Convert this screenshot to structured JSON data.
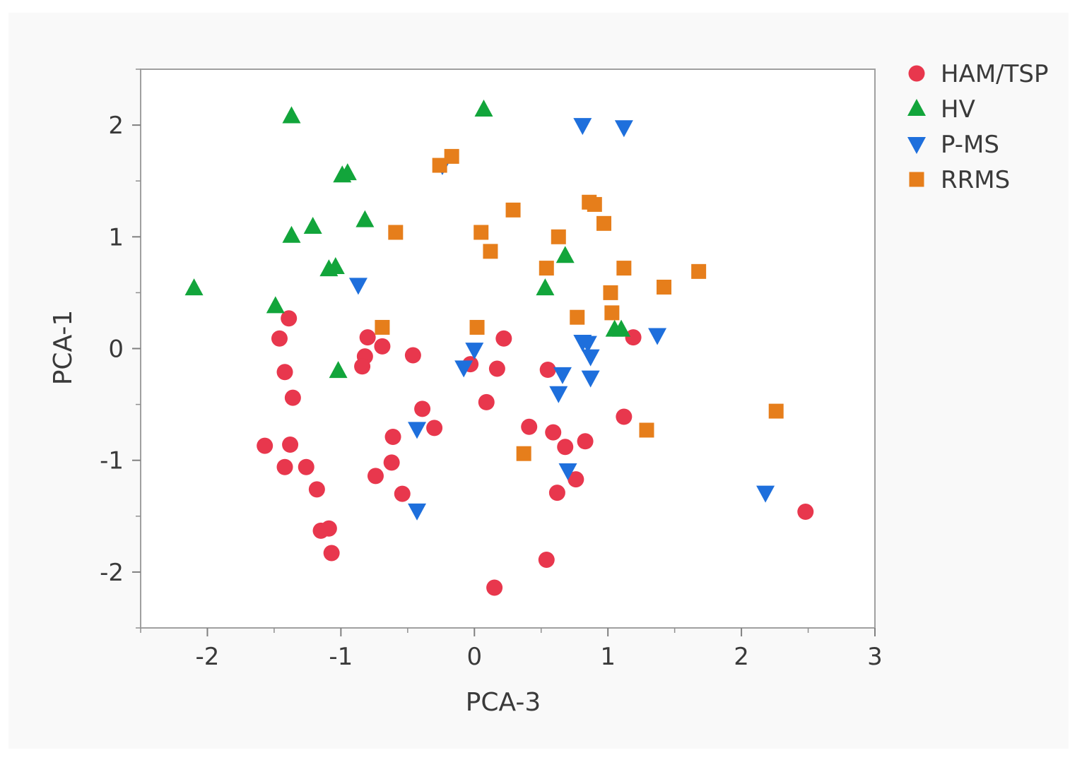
{
  "chart_data": {
    "type": "scatter",
    "xlabel": "PCA-3",
    "ylabel": "PCA-1",
    "xlim": [
      -2.5,
      3
    ],
    "ylim": [
      -2.5,
      2.5
    ],
    "xticks": [
      -2,
      -1,
      0,
      1,
      2,
      3
    ],
    "yticks": [
      -2,
      -1,
      0,
      1,
      2
    ],
    "xtick_labels": [
      "-2",
      "-1",
      "0",
      "1",
      "2",
      "3"
    ],
    "ytick_labels": [
      "-2",
      "-1",
      "0",
      "1",
      "2"
    ],
    "grid": false,
    "legend": "right",
    "series": [
      {
        "name": "HAM/TSP",
        "marker": "circle",
        "color": "#e8374d",
        "x": [
          -1.39,
          -1.46,
          -1.42,
          -1.36,
          -1.57,
          -1.38,
          -1.42,
          -1.26,
          -1.18,
          -1.15,
          -1.09,
          -1.07,
          -0.8,
          -0.82,
          -0.84,
          -0.69,
          -0.46,
          -0.39,
          -0.3,
          -0.61,
          -0.62,
          -0.74,
          -0.54,
          -0.03,
          0.09,
          0.17,
          0.22,
          0.15,
          0.41,
          0.55,
          0.59,
          0.68,
          0.83,
          0.62,
          0.76,
          0.54,
          1.12,
          1.19,
          2.48
        ],
        "y": [
          0.27,
          0.09,
          -0.21,
          -0.44,
          -0.87,
          -0.86,
          -1.06,
          -1.06,
          -1.26,
          -1.63,
          -1.61,
          -1.83,
          0.1,
          -0.07,
          -0.16,
          0.02,
          -0.06,
          -0.54,
          -0.71,
          -0.79,
          -1.02,
          -1.14,
          -1.3,
          -0.14,
          -0.48,
          -0.18,
          0.09,
          -2.14,
          -0.7,
          -0.19,
          -0.75,
          -0.88,
          -0.83,
          -1.29,
          -1.17,
          -1.89,
          -0.61,
          0.1,
          -1.46
        ]
      },
      {
        "name": "HV",
        "marker": "triangle-up",
        "color": "#12a53b",
        "x": [
          -2.1,
          -1.49,
          -1.37,
          -1.37,
          -1.21,
          -1.09,
          -1.04,
          -0.99,
          -0.95,
          -0.82,
          -1.02,
          0.07,
          0.53,
          0.68,
          1.05,
          1.1
        ],
        "y": [
          0.54,
          0.38,
          2.08,
          1.01,
          1.09,
          0.71,
          0.73,
          1.55,
          1.57,
          1.15,
          -0.2,
          2.14,
          0.54,
          0.83,
          0.17,
          0.17
        ]
      },
      {
        "name": "P-MS",
        "marker": "triangle-down",
        "color": "#1e6fdc",
        "x": [
          -0.87,
          -0.24,
          -0.08,
          0,
          -0.43,
          -0.43,
          0.81,
          1.12,
          0.81,
          0.85,
          0.87,
          0.66,
          0.63,
          0.7,
          1.37,
          0.87,
          2.18
        ],
        "y": [
          0.57,
          1.64,
          -0.17,
          -0.01,
          -0.72,
          -1.45,
          2.0,
          1.98,
          0.06,
          0.05,
          -0.07,
          -0.23,
          -0.4,
          -1.09,
          0.12,
          -0.26,
          -1.29
        ]
      },
      {
        "name": "RRMS",
        "marker": "square",
        "color": "#e67e1b",
        "x": [
          -0.59,
          -0.69,
          -0.26,
          -0.17,
          0.05,
          0.12,
          0.29,
          0.02,
          0.37,
          0.54,
          0.63,
          0.77,
          0.86,
          0.9,
          0.97,
          1.02,
          1.03,
          1.12,
          1.29,
          1.42,
          1.68,
          2.26
        ],
        "y": [
          1.04,
          0.19,
          1.64,
          1.72,
          1.04,
          0.87,
          1.24,
          0.19,
          -0.94,
          0.72,
          1.0,
          0.28,
          1.31,
          1.29,
          1.12,
          0.5,
          0.32,
          0.72,
          -0.73,
          0.55,
          0.69,
          -0.56
        ]
      }
    ]
  }
}
